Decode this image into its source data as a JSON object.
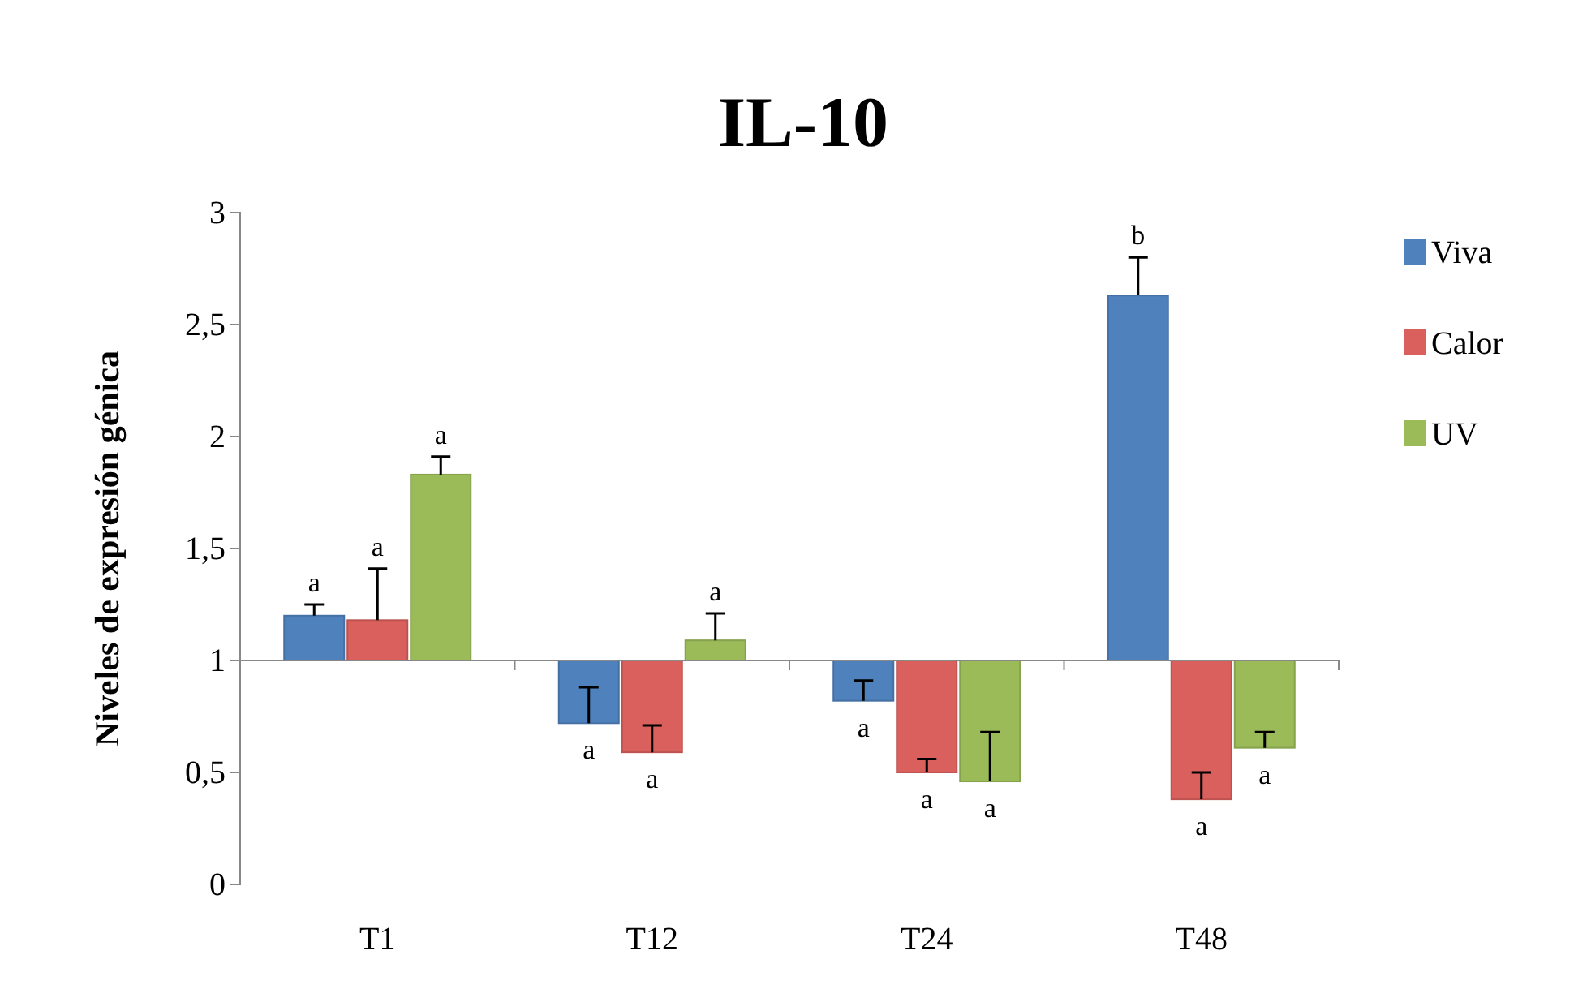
{
  "chart_data": {
    "type": "bar",
    "title": "IL-10",
    "ylabel": "Niveles de expresión génica",
    "categories": [
      "T1",
      "T12",
      "T24",
      "T48"
    ],
    "series": [
      {
        "name": "Viva",
        "color": "#4f81bd",
        "base": [
          1,
          1,
          1,
          1
        ],
        "values": [
          0.2,
          -0.28,
          -0.18,
          1.63
        ],
        "errors": [
          [
            1.2,
            1.25
          ],
          [
            0.72,
            0.88
          ],
          [
            0.82,
            0.91
          ],
          [
            2.63,
            2.8
          ]
        ]
      },
      {
        "name": "Calor",
        "color": "#d9605c",
        "base": [
          1,
          1,
          1,
          1
        ],
        "values": [
          0.18,
          -0.41,
          -0.5,
          -0.62
        ],
        "errors": [
          [
            1.18,
            1.41
          ],
          [
            0.59,
            0.71
          ],
          [
            0.5,
            0.56
          ],
          [
            0.38,
            0.5
          ]
        ]
      },
      {
        "name": "UV",
        "color": "#9bbb59",
        "base": [
          1,
          1,
          1,
          1
        ],
        "values": [
          0.83,
          0.09,
          -0.54,
          -0.39
        ],
        "errors": [
          [
            1.83,
            1.91
          ],
          [
            1.09,
            1.21
          ],
          [
            0.46,
            0.68
          ],
          [
            0.61,
            0.68
          ]
        ]
      }
    ],
    "annotations": [
      {
        "text": "a",
        "x": "T1",
        "y": 1.25
      },
      {
        "text": "a",
        "x": "T1",
        "y": 1.41
      },
      "a",
      {
        "text": "a",
        "x": "T12",
        "y": 0.72
      },
      {
        "text": "a",
        "x": "T12",
        "y": 0.59
      },
      "a",
      "a",
      {
        "text": "a",
        "x": "T24",
        "y": 0.5
      },
      "a",
      "b",
      {
        "text": "a",
        "x": "T48",
        "y": 0.38
      },
      "a"
    ],
    "ylim": [
      0,
      3
    ],
    "yticks": [
      0,
      {
        "value": 0.5,
        "label": "0,5"
      },
      1,
      {
        "value": 1.5,
        "label": "1,5"
      },
      2,
      {
        "value": 2.5,
        "label": "2,5"
      },
      3
    ],
    "legend": "right"
  }
}
